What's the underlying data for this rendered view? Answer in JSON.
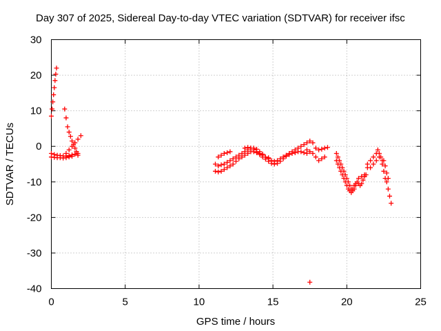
{
  "chart_data": {
    "type": "scatter",
    "title": "Day 307 of 2025, Sidereal Day-to-day VTEC variation (SDTVAR) for receiver ifsc",
    "xlabel": "GPS time / hours",
    "ylabel": "SDTVAR / TECUs",
    "xlim": [
      0,
      25
    ],
    "ylim": [
      -40,
      30
    ],
    "xticks": [
      0,
      5,
      10,
      15,
      20,
      25
    ],
    "yticks": [
      -40,
      -30,
      -20,
      -10,
      0,
      10,
      20,
      30
    ],
    "grid": true,
    "marker": "plus",
    "color": "#ff0000",
    "series": [
      {
        "name": "SDTVAR",
        "segments": [
          {
            "x": [
              0.0,
              0.05,
              0.1,
              0.15,
              0.2,
              0.25,
              0.3,
              0.35
            ],
            "y": [
              8.5,
              10.5,
              12.5,
              14.5,
              16.5,
              18.5,
              20.3,
              22.0
            ]
          },
          {
            "x": [
              0.0,
              0.2,
              0.4,
              0.6,
              0.8,
              1.0,
              1.2,
              1.4,
              1.6,
              1.8
            ],
            "y": [
              -2.0,
              -2.3,
              -2.5,
              -2.6,
              -2.7,
              -2.8,
              -2.6,
              -2.4,
              -2.2,
              -2.0
            ]
          },
          {
            "x": [
              0.0,
              0.2,
              0.4,
              0.6,
              0.8,
              1.0,
              1.2,
              1.4
            ],
            "y": [
              -3.0,
              -3.1,
              -3.2,
              -3.2,
              -3.3,
              -3.2,
              -3.0,
              -2.8
            ]
          },
          {
            "x": [
              0.9,
              1.0,
              1.1,
              1.2,
              1.3,
              1.4,
              1.5,
              1.6,
              1.7,
              1.8
            ],
            "y": [
              10.5,
              8.0,
              5.5,
              4.0,
              2.8,
              1.5,
              0.5,
              -0.5,
              -1.5,
              -2.5
            ]
          },
          {
            "x": [
              1.0,
              1.2,
              1.4,
              1.6,
              1.8,
              2.0
            ],
            "y": [
              -2.0,
              -1.0,
              0.0,
              1.0,
              2.0,
              3.0
            ]
          },
          {
            "x": [
              11.1,
              11.3,
              11.5,
              11.7,
              11.9,
              12.1,
              12.3,
              12.5,
              12.7,
              12.9,
              13.1,
              13.3,
              13.5,
              13.7,
              13.9,
              14.1,
              14.3,
              14.5,
              14.7,
              14.9,
              15.1,
              15.3,
              15.5,
              15.7,
              15.9,
              16.1,
              16.3,
              16.5,
              16.7,
              16.9,
              17.1,
              17.3
            ],
            "y": [
              -7.0,
              -7.2,
              -7.0,
              -6.5,
              -6.0,
              -5.5,
              -5.0,
              -4.2,
              -3.5,
              -3.0,
              -2.5,
              -2.0,
              -1.5,
              -1.5,
              -1.8,
              -2.3,
              -3.0,
              -3.6,
              -4.2,
              -4.8,
              -5.0,
              -4.8,
              -4.2,
              -3.5,
              -2.8,
              -2.3,
              -2.0,
              -1.8,
              -1.5,
              -1.5,
              -1.8,
              -2.0
            ]
          },
          {
            "x": [
              11.1,
              11.3,
              11.5,
              11.7,
              11.9,
              12.1,
              12.3,
              12.5,
              12.7,
              12.9,
              13.1,
              13.3,
              13.5,
              13.7,
              13.9,
              14.1,
              14.3,
              14.5,
              14.7,
              14.9,
              15.1,
              15.3,
              15.5,
              15.7,
              15.9,
              16.1,
              16.3,
              16.5,
              16.7,
              16.9,
              17.1,
              17.3,
              17.5,
              17.7
            ],
            "y": [
              -5.0,
              -5.5,
              -5.2,
              -5.0,
              -4.5,
              -4.0,
              -3.5,
              -3.0,
              -2.5,
              -2.0,
              -1.5,
              -1.0,
              -0.5,
              -0.5,
              -0.8,
              -1.5,
              -2.2,
              -3.0,
              -3.5,
              -4.0,
              -4.2,
              -4.0,
              -3.5,
              -3.0,
              -2.5,
              -2.0,
              -1.5,
              -1.0,
              -0.5,
              0.0,
              0.5,
              1.0,
              1.5,
              1.0
            ]
          },
          {
            "x": [
              11.3,
              11.5,
              11.7,
              11.9,
              12.1
            ],
            "y": [
              -3.0,
              -2.5,
              -2.0,
              -1.8,
              -1.5
            ]
          },
          {
            "x": [
              13.1,
              13.3,
              13.5,
              13.7,
              13.9,
              14.1,
              14.3,
              14.5,
              14.7
            ],
            "y": [
              -0.5,
              -0.3,
              -0.5,
              -1.0,
              -1.5,
              -2.0,
              -2.5,
              -3.0,
              -3.2
            ]
          },
          {
            "x": [
              17.3,
              17.5,
              17.7,
              17.9,
              18.1,
              18.3,
              18.5
            ],
            "y": [
              -1.0,
              -1.5,
              -2.0,
              -3.0,
              -4.0,
              -3.5,
              -3.0
            ]
          },
          {
            "x": [
              17.9,
              18.1,
              18.3,
              18.5,
              18.7
            ],
            "y": [
              -0.5,
              -1.0,
              -0.8,
              -0.5,
              -0.3
            ]
          },
          {
            "x": [
              19.3,
              19.4,
              19.5,
              19.6,
              19.7,
              19.8,
              19.9,
              20.0,
              20.1,
              20.2,
              20.3,
              20.4,
              20.5,
              20.6,
              20.7,
              20.8,
              20.9,
              21.0,
              21.1,
              21.2,
              21.3
            ],
            "y": [
              -2.0,
              -3.0,
              -4.0,
              -5.0,
              -6.0,
              -7.0,
              -8.0,
              -9.0,
              -10.0,
              -11.0,
              -12.0,
              -12.5,
              -12.0,
              -11.0,
              -10.0,
              -10.5,
              -11.0,
              -10.5,
              -9.5,
              -8.5,
              -8.0
            ]
          },
          {
            "x": [
              19.3,
              19.4,
              19.5,
              19.6,
              19.7,
              19.8,
              19.9,
              20.0,
              20.1,
              20.2,
              20.3,
              20.4,
              20.5,
              20.6
            ],
            "y": [
              -4.0,
              -5.0,
              -6.0,
              -7.0,
              -8.0,
              -9.0,
              -10.0,
              -11.0,
              -12.0,
              -12.5,
              -13.0,
              -12.0,
              -11.0,
              -10.5
            ]
          },
          {
            "x": [
              20.8,
              21.0,
              21.2,
              21.4,
              21.6,
              21.8,
              22.0,
              22.1,
              22.2,
              22.3,
              22.4
            ],
            "y": [
              -9.0,
              -8.5,
              -8.0,
              -6.0,
              -4.0,
              -3.0,
              -2.0,
              -1.0,
              -2.0,
              -3.0,
              -4.0
            ]
          },
          {
            "x": [
              21.4,
              21.6,
              21.8,
              22.0,
              22.2
            ],
            "y": [
              -5.0,
              -6.0,
              -5.0,
              -4.0,
              -3.0
            ]
          },
          {
            "x": [
              22.4,
              22.5,
              22.6,
              22.7,
              22.8,
              22.9,
              23.0
            ],
            "y": [
              -5.0,
              -7.0,
              -9.0,
              -10.0,
              -12.0,
              -14.0,
              -16.0
            ]
          },
          {
            "x": [
              22.5,
              22.6,
              22.7,
              22.8
            ],
            "y": [
              -4.0,
              -5.5,
              -7.5,
              -9.0
            ]
          },
          {
            "x": [
              17.5
            ],
            "y": [
              -38.2
            ]
          }
        ]
      }
    ]
  }
}
